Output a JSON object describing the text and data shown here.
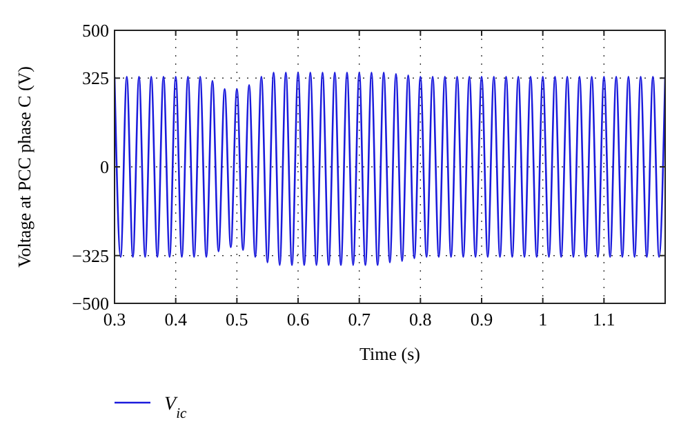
{
  "chart_data": {
    "type": "line",
    "xlabel": "Time (s)",
    "ylabel": "Voltage at PCC phase C (V)",
    "xlim": [
      0.3,
      1.2
    ],
    "xticks": [
      0.3,
      0.4,
      0.5,
      0.6,
      0.7,
      0.8,
      0.9,
      1,
      1.1
    ],
    "ylim": [
      -500,
      500
    ],
    "yticks": [
      {
        "value": -500,
        "label": "−500"
      },
      {
        "value": -325,
        "label": "−325"
      },
      0,
      325,
      500
    ],
    "grid": true,
    "legend": "bottom left",
    "marker": "none",
    "line_style": "solid",
    "x": [
      0.3,
      0.31,
      0.32,
      0.33,
      0.34,
      0.35,
      0.36,
      0.37,
      0.38,
      0.39,
      0.4,
      0.41,
      0.42,
      0.43,
      0.44,
      0.45,
      0.46,
      0.47,
      0.48,
      0.49,
      0.5,
      0.51,
      0.52,
      0.53,
      0.54,
      0.55,
      0.56,
      0.57,
      0.58,
      0.59,
      0.6,
      0.61,
      0.62,
      0.63,
      0.64,
      0.65,
      0.66,
      0.67,
      0.68,
      0.69,
      0.7,
      0.71,
      0.72,
      0.73,
      0.74,
      0.75,
      0.76,
      0.77,
      0.78,
      0.79,
      0.8,
      0.81,
      0.82,
      0.83,
      0.84,
      0.85,
      0.86,
      0.87,
      0.88,
      0.89,
      0.9,
      0.91,
      0.92,
      0.93,
      0.94,
      0.95,
      0.96,
      0.97,
      0.98,
      0.99,
      1,
      1.01,
      1.02,
      1.03,
      1.04,
      1.05,
      1.06,
      1.07,
      1.08,
      1.09,
      1.1,
      1.11,
      1.12,
      1.13,
      1.14,
      1.15,
      1.16,
      1.17,
      1.18,
      1.19,
      1.2
    ],
    "series": [
      {
        "name": "V$_{ic}$",
        "color": "#1a1adc",
        "values": [
          330,
          -330,
          330,
          -330,
          330,
          -330,
          330,
          -330,
          330,
          -330,
          330,
          -330,
          330,
          -330,
          330,
          -330,
          315,
          -310,
          285,
          -295,
          285,
          -305,
          300,
          -330,
          330,
          -350,
          345,
          -360,
          345,
          -360,
          345,
          -360,
          345,
          -360,
          345,
          -360,
          345,
          -360,
          345,
          -360,
          345,
          -360,
          345,
          -360,
          345,
          -350,
          340,
          -345,
          335,
          -335,
          330,
          -330,
          330,
          -330,
          330,
          -330,
          330,
          -330,
          330,
          -330,
          330,
          -330,
          330,
          -330,
          330,
          -330,
          330,
          -330,
          330,
          -330,
          330,
          -330,
          330,
          -330,
          330,
          -330,
          330,
          -330,
          330,
          -330,
          330,
          -330,
          330,
          -330,
          330,
          -330,
          330,
          -330,
          330,
          -330,
          330
        ]
      }
    ]
  }
}
